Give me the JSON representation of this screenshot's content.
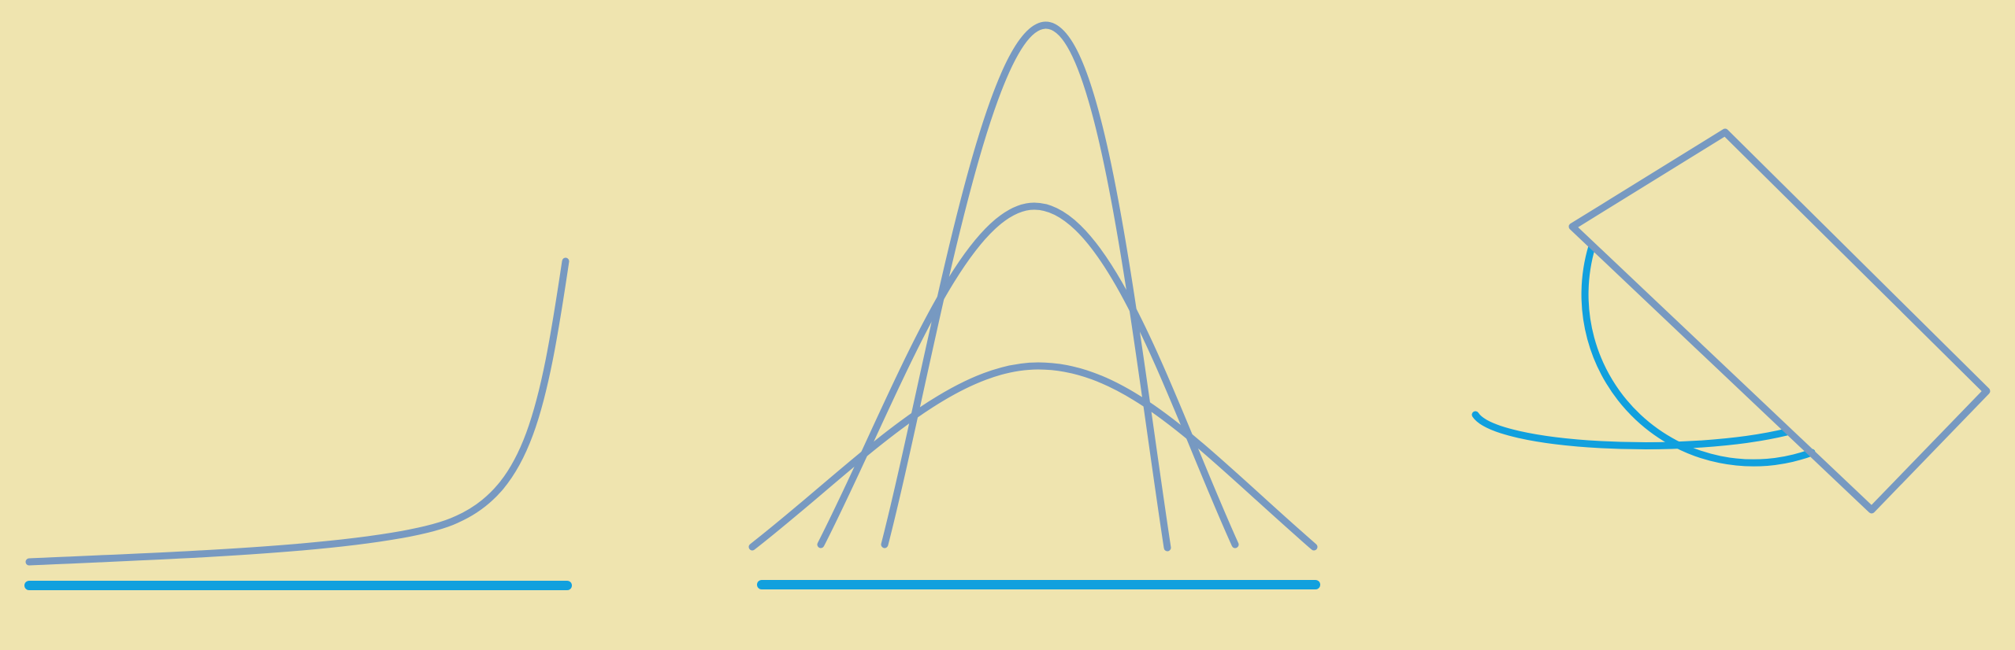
{
  "colors": {
    "background": "#EFE4AF",
    "curve": "#7799C1",
    "accent": "#11A0DE"
  },
  "icons": [
    "exponential-curve-icon",
    "bell-curves-icon",
    "sphere-and-cylinder-icon"
  ]
}
